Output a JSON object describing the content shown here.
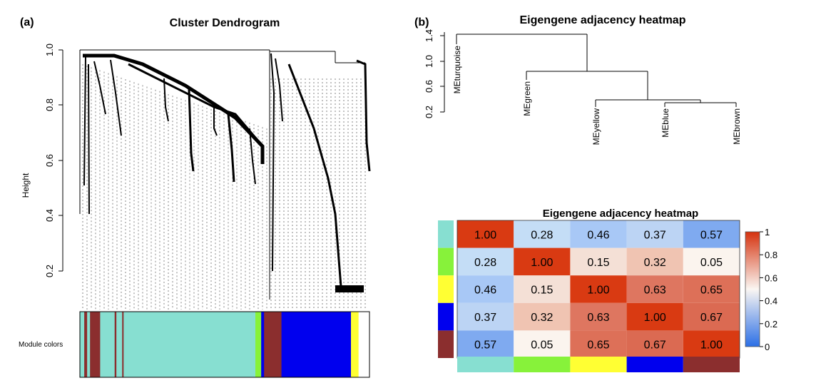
{
  "panels": {
    "a": {
      "label": "(a)",
      "title": "Cluster Dendrogram",
      "ylabel": "Height",
      "yticks": [
        "0.2",
        "0.4",
        "0.6",
        "0.8",
        "1.0"
      ],
      "module_label": "Module colors"
    },
    "b": {
      "label": "(b)",
      "title": "Eigengene adjacency heatmap",
      "yticks": [
        "0.2",
        "0.6",
        "1.0",
        "1.4"
      ],
      "heatmap_title": "Eigengene adjacency heatmap",
      "colorbar_ticks": [
        "0",
        "0.2",
        "0.4",
        "0.6",
        "0.8",
        "1"
      ]
    }
  },
  "colors": {
    "turquoise": "#87DFD1",
    "green": "#87F23A",
    "yellow": "#FFFF33",
    "blue": "#0000EE",
    "brown": "#8B2E2E",
    "heat_low": "#3E7FE8",
    "heat_mid": "#FAF6F2",
    "heat_high": "#D93A12"
  },
  "chart_data": [
    {
      "type": "dendrogram",
      "title": "Cluster Dendrogram",
      "ylabel": "Height",
      "ylim": [
        0.1,
        1.0
      ],
      "module_colors": [
        {
          "color": "turquoise",
          "share": 0.015
        },
        {
          "color": "brown",
          "share": 0.01
        },
        {
          "color": "turquoise",
          "share": 0.01
        },
        {
          "color": "brown",
          "share": 0.035
        },
        {
          "color": "turquoise",
          "share": 0.05
        },
        {
          "color": "brown",
          "share": 0.006
        },
        {
          "color": "turquoise",
          "share": 0.02
        },
        {
          "color": "brown",
          "share": 0.005
        },
        {
          "color": "turquoise",
          "share": 0.455
        },
        {
          "color": "green",
          "share": 0.02
        },
        {
          "color": "blue",
          "share": 0.01
        },
        {
          "color": "brown",
          "share": 0.06
        },
        {
          "color": "blue",
          "share": 0.24
        },
        {
          "color": "yellow",
          "share": 0.025
        }
      ]
    },
    {
      "type": "dendrogram",
      "title": "Eigengene adjacency heatmap",
      "ylim": [
        0.2,
        1.4
      ],
      "leaves": [
        "MEturquoise",
        "MEgreen",
        "MEyellow",
        "MEblue",
        "MEbrown"
      ],
      "merges": [
        {
          "left": "MEblue",
          "right": "MEbrown",
          "height": 0.33
        },
        {
          "left": "MEyellow",
          "right": "MEblue+MEbrown",
          "height": 0.35
        },
        {
          "left": "MEgreen",
          "right": "MEyellow+MEblue+MEbrown",
          "height": 0.95
        },
        {
          "left": "MEturquoise",
          "right": "MEgreen+MEyellow+MEblue+MEbrown",
          "height": 1.43
        }
      ]
    },
    {
      "type": "heatmap",
      "title": "Eigengene adjacency heatmap",
      "rows": [
        "turquoise",
        "green",
        "yellow",
        "blue",
        "brown"
      ],
      "cols": [
        "turquoise",
        "green",
        "yellow",
        "blue",
        "brown"
      ],
      "values": [
        [
          "1.00",
          "0.28",
          "0.46",
          "0.37",
          "0.57"
        ],
        [
          "0.28",
          "1.00",
          "0.15",
          "0.32",
          "0.05"
        ],
        [
          "0.46",
          "0.15",
          "1.00",
          "0.63",
          "0.65"
        ],
        [
          "0.37",
          "0.32",
          "0.63",
          "1.00",
          "0.67"
        ],
        [
          "0.57",
          "0.05",
          "0.65",
          "0.67",
          "1.00"
        ]
      ],
      "cell_colors": [
        [
          "#D93A12",
          "#C4DDF6",
          "#A8C8F6",
          "#BCD4F4",
          "#7FAAF0"
        ],
        [
          "#C4DDF6",
          "#D93A12",
          "#F4E0D6",
          "#F0C4B2",
          "#FBF4EE"
        ],
        [
          "#A8C8F6",
          "#F4E0D6",
          "#D93A12",
          "#DE7660",
          "#DD7058"
        ],
        [
          "#BCD4F4",
          "#F0C4B2",
          "#DE7660",
          "#D93A12",
          "#DB6A52"
        ],
        [
          "#7FAAF0",
          "#FBF4EE",
          "#DD7058",
          "#DB6A52",
          "#D93A12"
        ]
      ],
      "colorbar_range": [
        0,
        1
      ]
    }
  ]
}
